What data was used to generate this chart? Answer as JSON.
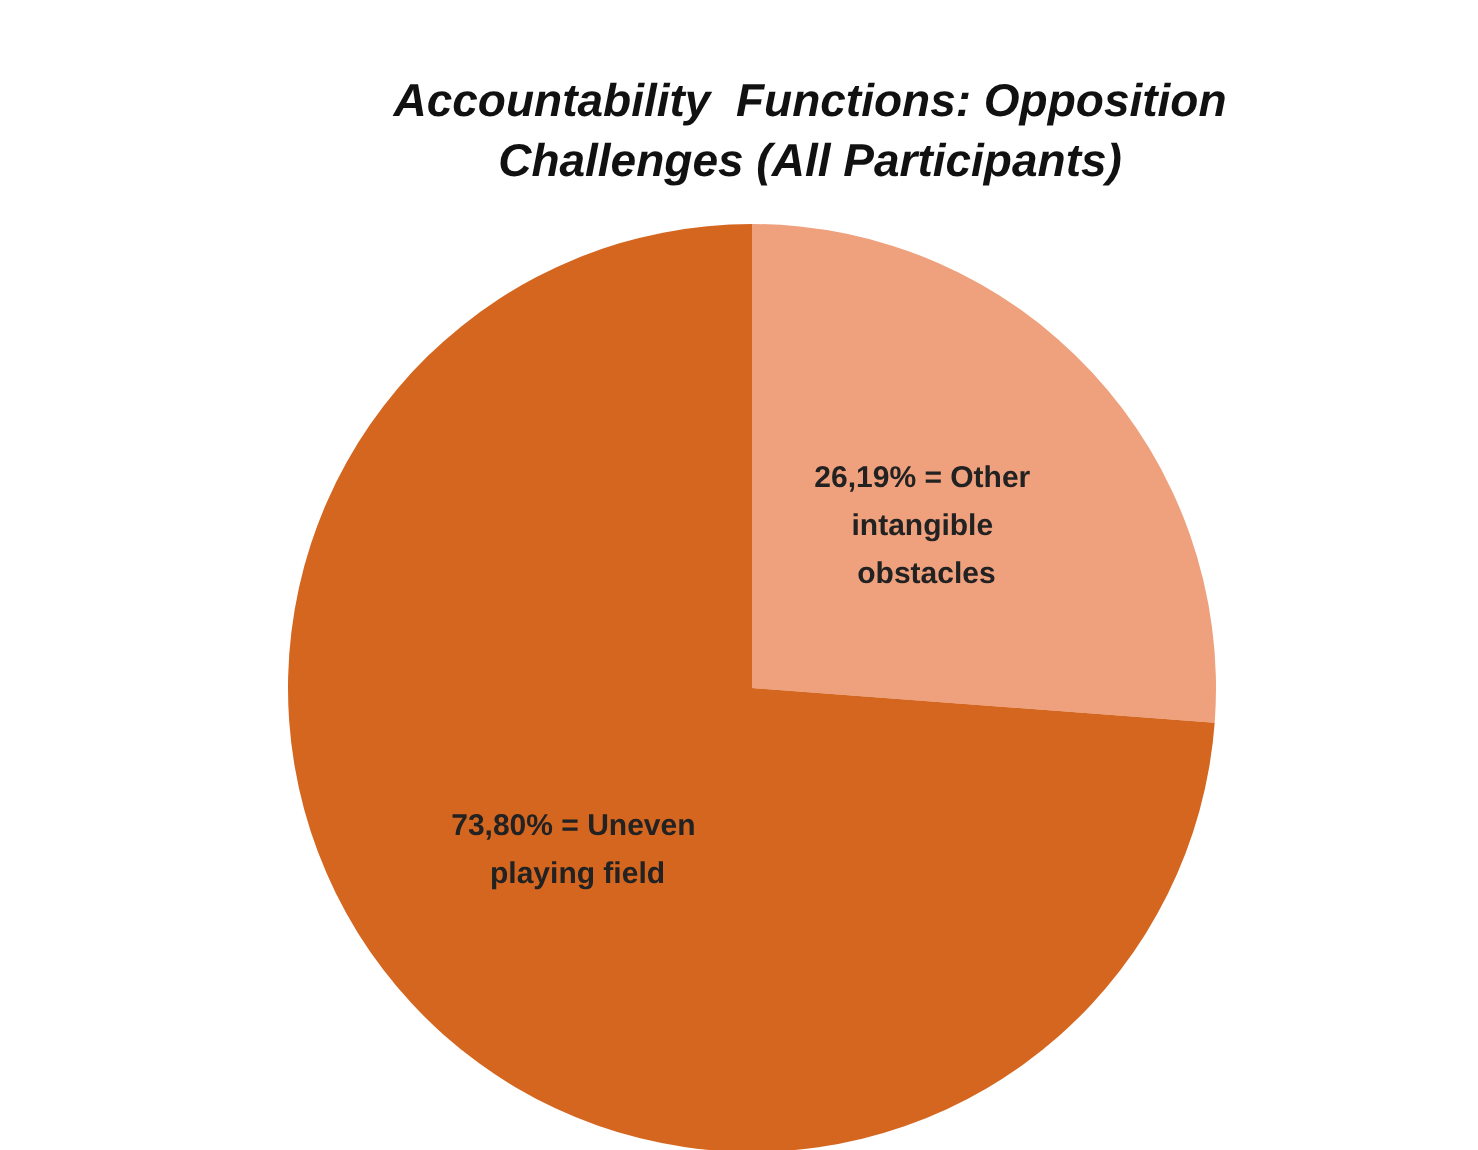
{
  "chart_data": {
    "type": "pie",
    "title": "Accountability  Functions: Opposition\nChallenges (All Participants)",
    "categories": [
      "26,19% = Other intangible obstacles",
      "73,80% = Uneven playing field"
    ],
    "values": [
      26.19,
      73.8
    ],
    "colors": [
      "#efa07c",
      "#d56620"
    ],
    "legend": false
  }
}
